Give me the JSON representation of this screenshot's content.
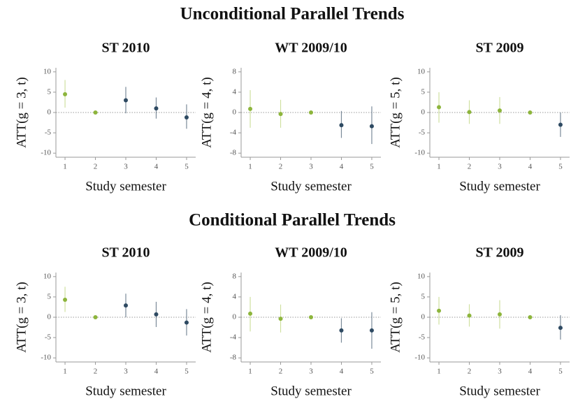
{
  "headings": [
    "Unconditional Parallel Trends",
    "Conditional Parallel Trends"
  ],
  "chart_data": [
    {
      "type": "errorbar",
      "title": "ST 2010",
      "xlabel": "Study semester",
      "ylabel": "ATT(g = 3, t)",
      "xlim": [
        0.7,
        5.3
      ],
      "xticks": [
        1,
        2,
        3,
        4,
        5
      ],
      "ylim": [
        -11,
        11
      ],
      "yticks": [
        -10,
        -5,
        0,
        5,
        10
      ],
      "reference_line": 0,
      "series": [
        {
          "color": "#8db53c",
          "error_color": "#cfe0a0",
          "x": [
            1,
            2
          ],
          "values": [
            4.5,
            0
          ],
          "lower": [
            1.2,
            null
          ],
          "upper": [
            8,
            null
          ]
        },
        {
          "color": "#2e4a62",
          "error_color": "#7a8a99",
          "x": [
            3,
            4,
            5
          ],
          "values": [
            3.0,
            1.0,
            -1.2
          ],
          "lower": [
            -0.2,
            -1.5,
            -4
          ],
          "upper": [
            6.3,
            3.7,
            2
          ]
        }
      ]
    },
    {
      "type": "errorbar",
      "title": "WT 2009/10",
      "xlabel": "Study semester",
      "ylabel": "ATT(g = 4, t)",
      "xlim": [
        0.7,
        5.3
      ],
      "xticks": [
        1,
        2,
        3,
        4,
        5
      ],
      "ylim": [
        -8.8,
        8.8
      ],
      "yticks": [
        -8,
        -4,
        0,
        4,
        8
      ],
      "reference_line": 0,
      "series": [
        {
          "color": "#8db53c",
          "error_color": "#cfe0a0",
          "x": [
            1,
            2,
            3
          ],
          "values": [
            0.7,
            -0.3,
            0
          ],
          "lower": [
            -3,
            -3,
            null
          ],
          "upper": [
            4.4,
            2.5,
            null
          ]
        },
        {
          "color": "#2e4a62",
          "error_color": "#7a8a99",
          "x": [
            4,
            5
          ],
          "values": [
            -2.5,
            -2.7
          ],
          "lower": [
            -5,
            -6.2
          ],
          "upper": [
            0.3,
            1.2
          ]
        }
      ]
    },
    {
      "type": "errorbar",
      "title": "ST 2009",
      "xlabel": "Study semester",
      "ylabel": "ATT(g = 5, t)",
      "xlim": [
        0.7,
        5.3
      ],
      "xticks": [
        1,
        2,
        3,
        4,
        5
      ],
      "ylim": [
        -11,
        11
      ],
      "yticks": [
        -10,
        -5,
        0,
        5,
        10
      ],
      "reference_line": 0,
      "series": [
        {
          "color": "#8db53c",
          "error_color": "#cfe0a0",
          "x": [
            1,
            2,
            3,
            4
          ],
          "values": [
            1.3,
            0.1,
            0.5,
            0
          ],
          "lower": [
            -2.5,
            -2.8,
            -2.8,
            null
          ],
          "upper": [
            5,
            3,
            3.8,
            null
          ]
        },
        {
          "color": "#2e4a62",
          "error_color": "#7a8a99",
          "x": [
            5
          ],
          "values": [
            -3
          ],
          "lower": [
            -6
          ],
          "upper": [
            0
          ]
        }
      ]
    },
    {
      "type": "errorbar",
      "title": "ST 2010",
      "xlabel": "Study semester",
      "ylabel": "ATT(g = 3, t)",
      "xlim": [
        0.7,
        5.3
      ],
      "xticks": [
        1,
        2,
        3,
        4,
        5
      ],
      "ylim": [
        -11,
        11
      ],
      "yticks": [
        -10,
        -5,
        0,
        5,
        10
      ],
      "reference_line": 0,
      "series": [
        {
          "color": "#8db53c",
          "error_color": "#cfe0a0",
          "x": [
            1,
            2
          ],
          "values": [
            4.3,
            0
          ],
          "lower": [
            1.3,
            null
          ],
          "upper": [
            7.5,
            null
          ]
        },
        {
          "color": "#2e4a62",
          "error_color": "#7a8a99",
          "x": [
            3,
            4,
            5
          ],
          "values": [
            2.9,
            0.7,
            -1.3
          ],
          "lower": [
            0,
            -2.4,
            -4.5
          ],
          "upper": [
            5.8,
            3.8,
            2
          ]
        }
      ]
    },
    {
      "type": "errorbar",
      "title": "WT 2009/10",
      "xlabel": "Study semester",
      "ylabel": "ATT(g = 4, t)",
      "xlim": [
        0.7,
        5.3
      ],
      "xticks": [
        1,
        2,
        3,
        4,
        5
      ],
      "ylim": [
        -8.8,
        8.8
      ],
      "yticks": [
        -8,
        -4,
        0,
        4,
        8
      ],
      "reference_line": 0,
      "series": [
        {
          "color": "#8db53c",
          "error_color": "#cfe0a0",
          "x": [
            1,
            2,
            3
          ],
          "values": [
            0.7,
            -0.3,
            0
          ],
          "lower": [
            -2.8,
            -3,
            null
          ],
          "upper": [
            4,
            2.5,
            null
          ]
        },
        {
          "color": "#2e4a62",
          "error_color": "#7a8a99",
          "x": [
            4,
            5
          ],
          "values": [
            -2.6,
            -2.6
          ],
          "lower": [
            -5,
            -6.2
          ],
          "upper": [
            -0.2,
            1
          ]
        }
      ]
    },
    {
      "type": "errorbar",
      "title": "ST 2009",
      "xlabel": "Study semester",
      "ylabel": "ATT(g = 5, t)",
      "xlim": [
        0.7,
        5.3
      ],
      "xticks": [
        1,
        2,
        3,
        4,
        5
      ],
      "ylim": [
        -11,
        11
      ],
      "yticks": [
        -10,
        -5,
        0,
        5,
        10
      ],
      "reference_line": 0,
      "series": [
        {
          "color": "#8db53c",
          "error_color": "#cfe0a0",
          "x": [
            1,
            2,
            3,
            4
          ],
          "values": [
            1.6,
            0.4,
            0.7,
            0
          ],
          "lower": [
            -1.8,
            -2.3,
            -2.8,
            null
          ],
          "upper": [
            5,
            3.2,
            4.2,
            null
          ]
        },
        {
          "color": "#2e4a62",
          "error_color": "#7a8a99",
          "x": [
            5
          ],
          "values": [
            -2.6
          ],
          "lower": [
            -5.5
          ],
          "upper": [
            0.5
          ]
        }
      ]
    }
  ]
}
